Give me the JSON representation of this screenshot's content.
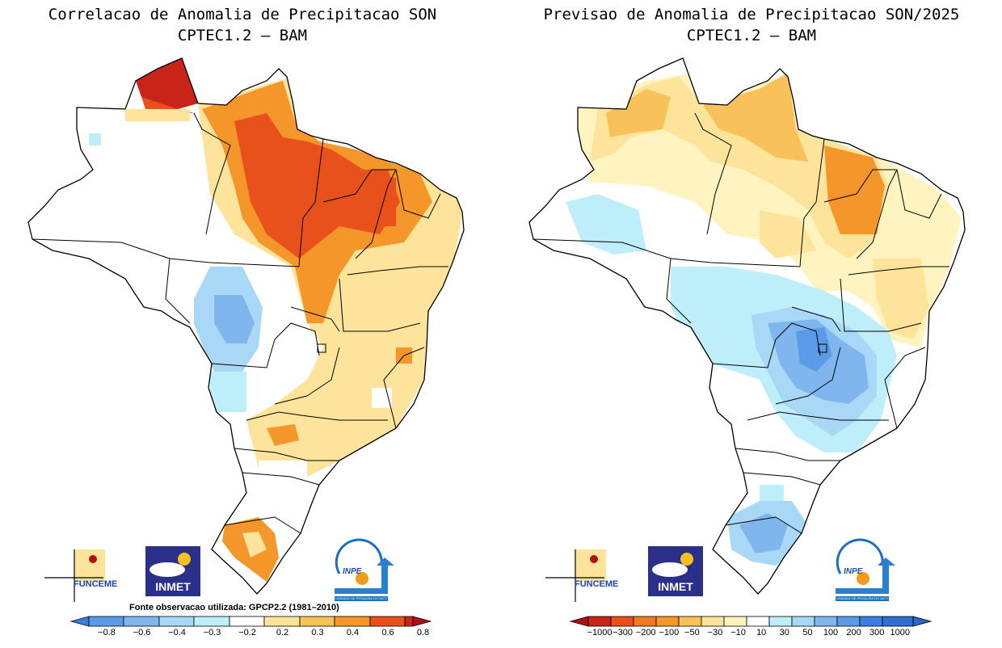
{
  "left_panel": {
    "title_line1": "Correlacao de Anomalia de Precipitacao SON",
    "title_line2": "CPTEC1.2 – BAM",
    "source_note": "Fonte observacao utilizada: GPCP2.2 (1981–2010)",
    "colorbar_labels": [
      "−0.8",
      "−0.6",
      "−0.4",
      "−0.3",
      "−0.2",
      "0.2",
      "0.3",
      "0.4",
      "0.6",
      "0.8"
    ]
  },
  "right_panel": {
    "title_line1": "Previsao de Anomalia de Precipitacao SON/2025",
    "title_line2": "CPTEC1.2 – BAM",
    "colorbar_labels": [
      "−1000",
      "−300",
      "−200",
      "−100",
      "−50",
      "−30",
      "−10",
      "10",
      "30",
      "50",
      "100",
      "200",
      "300",
      "1000"
    ]
  },
  "logos": {
    "funceme": "FUNCEME",
    "inmet": "INMET",
    "inpe": "INPE",
    "inpe_sub": "UNIDADE DE PESQUISA DO MCTI"
  },
  "colors": {
    "red_dark": "#c8241a",
    "red": "#e8501c",
    "orange": "#f5962a",
    "light_orange": "#f9c15a",
    "yellow": "#fde49a",
    "pale_yellow": "#fff4c0",
    "white": "#ffffff",
    "pale_blue": "#bfeefb",
    "light_blue": "#a8d8f5",
    "blue": "#7fb6ee",
    "mid_blue": "#5a9ae6",
    "dark_blue": "#3b7ee0"
  }
}
